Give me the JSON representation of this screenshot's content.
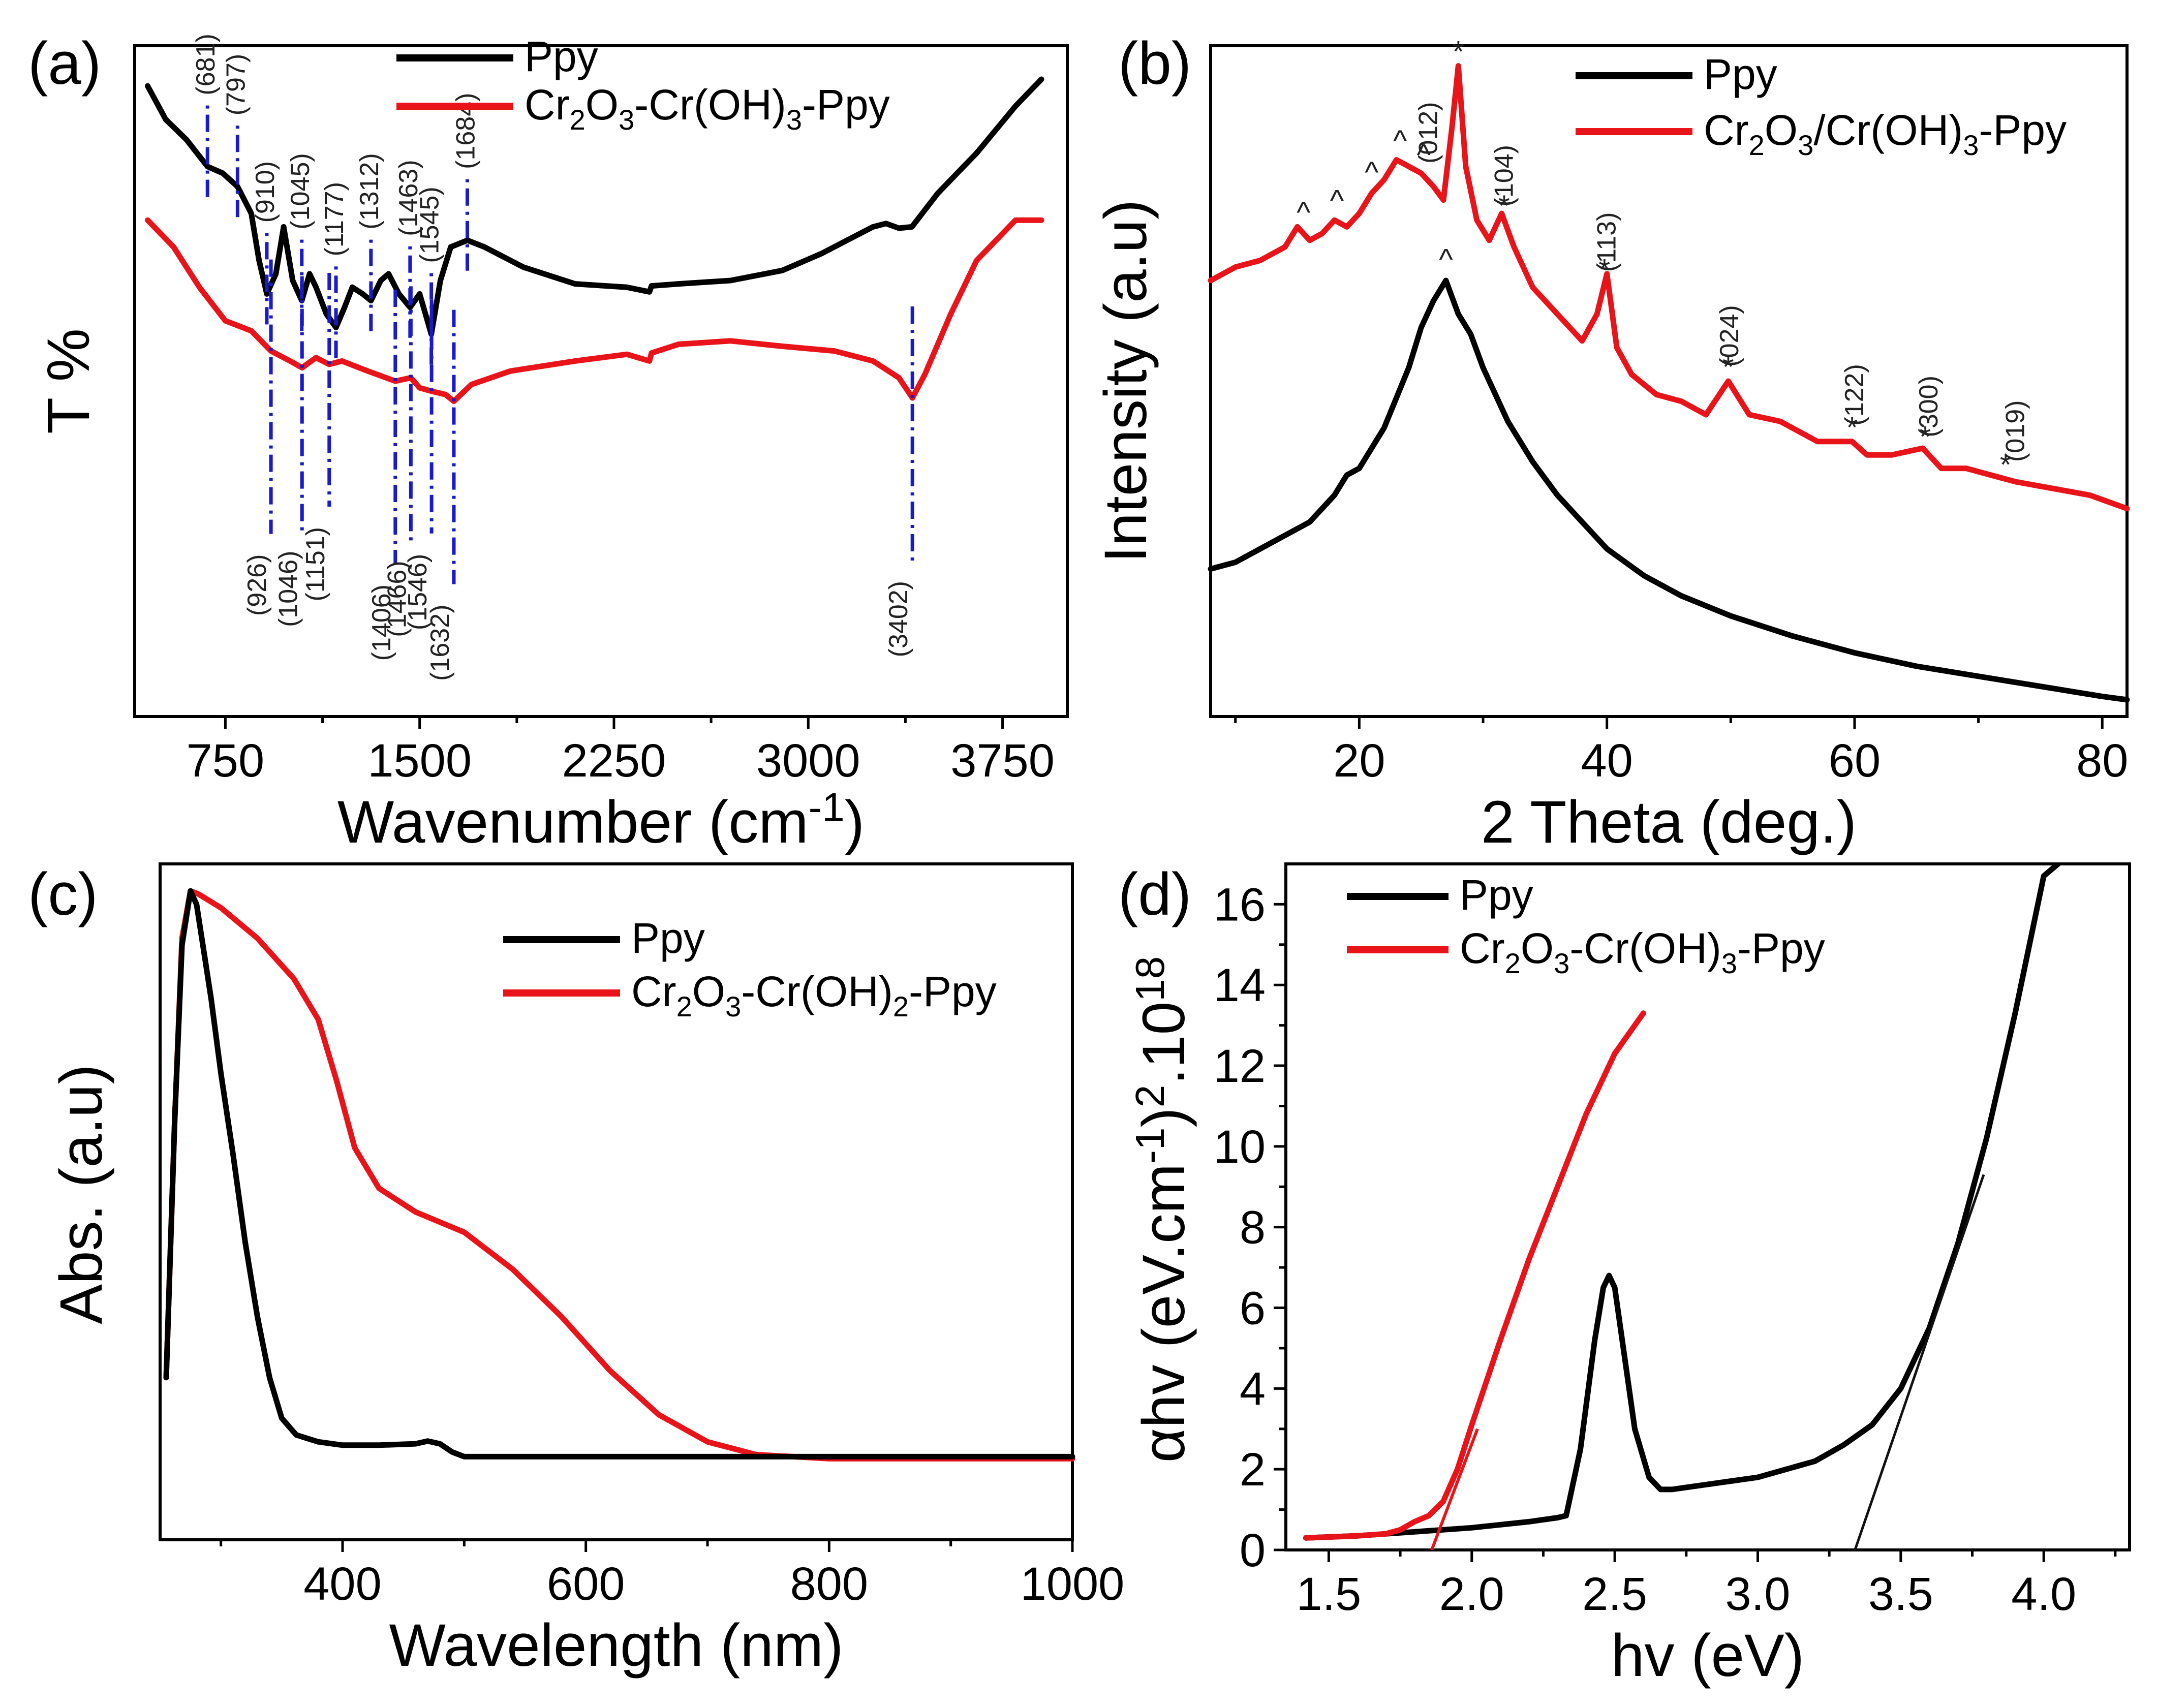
{
  "chart_data": [
    {
      "id": "a",
      "panel_label": "(a)",
      "type": "line",
      "title": "",
      "xlabel": "Wavenumber (cm-1)",
      "xlabel_main": "Wavenumber (cm",
      "xlabel_sup": "-1",
      "xlabel_end": ")",
      "ylabel": "T %",
      "xlim": [
        400,
        4000
      ],
      "ylim": [
        0,
        100
      ],
      "xticks": [
        750,
        1500,
        2250,
        3000,
        3750
      ],
      "xtick_labels": [
        "750",
        "1500",
        "2250",
        "3000",
        "3750"
      ],
      "legend": [
        "Ppy",
        "Cr2O3-Cr(OH)3-Ppy"
      ],
      "legend_parts": [
        [
          {
            "t": "Ppy"
          }
        ],
        [
          {
            "t": "Cr"
          },
          {
            "t": "2",
            "s": 1
          },
          {
            "t": "O"
          },
          {
            "t": "3",
            "s": 1
          },
          {
            "t": "-Cr(OH)"
          },
          {
            "t": "3",
            "s": 1
          },
          {
            "t": "-Ppy"
          }
        ]
      ],
      "colors": {
        "Ppy": "#000000",
        "composite": "#e8141a",
        "marker": "#1a1acc"
      },
      "series": [
        {
          "name": "Ppy",
          "x": [
            450,
            520,
            600,
            681,
            740,
            797,
            850,
            880,
            910,
            945,
            975,
            1010,
            1045,
            1075,
            1100,
            1140,
            1177,
            1210,
            1240,
            1280,
            1312,
            1350,
            1380,
            1420,
            1463,
            1500,
            1545,
            1580,
            1620,
            1684,
            1750,
            1900,
            2100,
            2300,
            2387,
            2395,
            2500,
            2700,
            2900,
            3050,
            3250,
            3300,
            3350,
            3400,
            3500,
            3650,
            3800,
            3900
          ],
          "y": [
            94,
            89,
            86,
            82,
            81,
            79,
            75,
            68,
            63,
            66,
            73,
            65,
            62,
            66,
            64,
            60,
            58,
            61,
            64,
            63,
            62,
            65,
            66,
            63,
            61,
            63,
            57,
            65,
            70,
            71,
            70,
            67,
            64.5,
            64,
            63.3,
            64.2,
            64.5,
            65,
            66.5,
            69,
            73,
            73.5,
            72.8,
            73,
            78,
            84,
            91,
            95
          ]
        },
        {
          "name": "Cr2O3-Cr(OH)3-Ppy",
          "x": [
            450,
            550,
            650,
            750,
            850,
            926,
            1000,
            1046,
            1100,
            1151,
            1200,
            1300,
            1406,
            1466,
            1500,
            1546,
            1600,
            1632,
            1700,
            1850,
            2100,
            2300,
            2387,
            2395,
            2500,
            2700,
            2900,
            3100,
            3250,
            3350,
            3402,
            3450,
            3550,
            3650,
            3800,
            3900
          ],
          "y": [
            74,
            70,
            64,
            59,
            57.5,
            54.5,
            53,
            52,
            53.5,
            52.5,
            53,
            51.5,
            50,
            50.5,
            49,
            48.5,
            48,
            47,
            49.5,
            51.5,
            53,
            54,
            53,
            54.2,
            55.5,
            56,
            55.2,
            54.5,
            53,
            50.5,
            47.5,
            51,
            60,
            68,
            74,
            74
          ]
        }
      ],
      "ppy_markers": [
        681,
        797,
        910,
        1045,
        1177,
        1312,
        1463,
        1545,
        1684
      ],
      "ppy_marker_labels": [
        "(681)",
        "(797)",
        "(910)",
        "(1045)",
        "(1177)",
        "(1312)",
        "(1463)",
        "(1545)",
        "(1684)"
      ],
      "composite_markers": [
        926,
        1046,
        1151,
        1406,
        1466,
        1546,
        1632,
        3402
      ],
      "composite_marker_labels": [
        "(926)",
        "(1046)",
        "(1151)",
        "(1406)",
        "(1466)",
        "(1546)",
        "(1632)",
        "(3402)"
      ]
    },
    {
      "id": "b",
      "panel_label": "(b)",
      "type": "line",
      "title": "",
      "xlabel": "2 Theta (deg.)",
      "ylabel": "Intensity (a.u)",
      "xlim": [
        8,
        82
      ],
      "ylim": [
        0,
        100
      ],
      "xticks": [
        20,
        40,
        60,
        80
      ],
      "xtick_labels": [
        "20",
        "40",
        "60",
        "80"
      ],
      "legend": [
        "Ppy",
        "Cr2O3/Cr(OH)3-Ppy"
      ],
      "legend_parts": [
        [
          {
            "t": "Ppy"
          }
        ],
        [
          {
            "t": "Cr"
          },
          {
            "t": "2",
            "s": 1
          },
          {
            "t": "O"
          },
          {
            "t": "3",
            "s": 1
          },
          {
            "t": "/Cr(OH)"
          },
          {
            "t": "3",
            "s": 1
          },
          {
            "t": "-Ppy"
          }
        ]
      ],
      "series": [
        {
          "name": "Ppy",
          "x": [
            8,
            10,
            12,
            14,
            16,
            18,
            19,
            20,
            22,
            24,
            25,
            26,
            27,
            28,
            29,
            30,
            32,
            34,
            36,
            38,
            40,
            43,
            46,
            50,
            55,
            60,
            65,
            70,
            75,
            80,
            82
          ],
          "y": [
            22,
            23,
            25,
            27,
            29,
            33,
            36,
            37,
            43,
            52,
            58,
            62,
            65,
            60,
            57,
            52,
            44,
            38,
            33,
            29,
            25,
            21,
            18,
            15,
            12,
            9.5,
            7.5,
            6,
            4.5,
            3,
            2.5
          ]
        },
        {
          "name": "Cr2O3/Cr(OH)3-Ppy",
          "x": [
            8,
            10,
            12,
            14,
            15,
            16,
            17,
            18,
            19,
            20,
            21,
            22,
            23,
            24,
            25,
            26,
            26.8,
            27.5,
            28,
            28.6,
            29.5,
            30.5,
            31.5,
            32.5,
            34,
            36,
            38,
            39.2,
            40,
            40.8,
            42,
            44,
            46,
            48,
            49.8,
            51.5,
            54,
            57,
            59.8,
            61,
            63,
            65.5,
            67,
            69,
            71,
            73,
            76,
            79,
            82
          ],
          "y": [
            65,
            67,
            68,
            70,
            73,
            71,
            72,
            74,
            73,
            75,
            78,
            80,
            83,
            82,
            81,
            79,
            77,
            88,
            97,
            82,
            74,
            71,
            75,
            70,
            64,
            60,
            56,
            60,
            66,
            55,
            51,
            48,
            47,
            45,
            50,
            45,
            44,
            41,
            41,
            39,
            39,
            40,
            37,
            37,
            36,
            35,
            34,
            33,
            31
          ]
        }
      ],
      "hat_markers": [
        15.5,
        18.2,
        21,
        23.3,
        25.2,
        27
      ],
      "star_markers": [
        28,
        31.7,
        39.8,
        49.8,
        59.8,
        65.7,
        72.2
      ],
      "star_symbol": "*",
      "hat_symbol": "^",
      "hkl_positions": [
        25.8,
        31.9,
        40.2,
        50.1,
        60.2,
        66.2,
        73.2
      ],
      "hkl_labels": [
        "(012)",
        "(104)",
        "(113)",
        "(024)",
        "(122)",
        "(300)",
        "(019)"
      ]
    },
    {
      "id": "c",
      "panel_label": "(c)",
      "type": "line",
      "title": "",
      "xlabel": "Wavelength (nm)",
      "ylabel": "Abs. (a.u)",
      "xlim": [
        250,
        1000
      ],
      "ylim": [
        0,
        100
      ],
      "xticks": [
        400,
        600,
        800,
        1000
      ],
      "xtick_labels": [
        "400",
        "600",
        "800",
        "1000"
      ],
      "legend": [
        "Ppy",
        "Cr2O3-Cr(OH)2-Ppy"
      ],
      "legend_parts": [
        [
          {
            "t": "Ppy"
          }
        ],
        [
          {
            "t": "Cr"
          },
          {
            "t": "2",
            "s": 1
          },
          {
            "t": "O"
          },
          {
            "t": "3",
            "s": 1
          },
          {
            "t": "-Cr(OH)"
          },
          {
            "t": "2",
            "s": 1
          },
          {
            "t": "-Ppy"
          }
        ]
      ],
      "series": [
        {
          "name": "Ppy",
          "x": [
            255,
            262,
            268,
            275,
            280,
            286,
            292,
            300,
            310,
            320,
            330,
            340,
            350,
            362,
            380,
            400,
            430,
            460,
            470,
            480,
            490,
            500,
            550,
            600,
            700,
            800,
            900,
            1000
          ],
          "y": [
            24,
            62,
            88,
            96,
            94,
            87,
            80,
            69,
            57,
            44,
            33,
            24,
            18,
            15.5,
            14.5,
            14,
            14,
            14.2,
            14.6,
            14.2,
            13,
            12.3,
            12.3,
            12.3,
            12.3,
            12.3,
            12.3,
            12.3
          ]
        },
        {
          "name": "Cr2O3-Cr(OH)2-Ppy",
          "x": [
            255,
            262,
            268,
            275,
            282,
            300,
            330,
            360,
            380,
            395,
            410,
            430,
            460,
            500,
            540,
            580,
            620,
            660,
            700,
            740,
            800,
            900,
            1000
          ],
          "y": [
            24,
            62,
            89,
            96,
            95.5,
            93.5,
            89,
            83,
            77,
            68,
            58,
            52,
            48.5,
            45.5,
            40,
            33,
            25,
            18.5,
            14.5,
            12.6,
            12,
            12,
            12
          ]
        }
      ]
    },
    {
      "id": "d",
      "panel_label": "(d)",
      "type": "line",
      "title": "",
      "xlabel": "hv (eV)",
      "ylabel": "αhv (eV.cm-1)2.1018",
      "ylabel_parts": [
        "αhv (eV.cm",
        "-1",
        ")",
        "2",
        ".10",
        "18"
      ],
      "xlim": [
        1.35,
        4.3
      ],
      "ylim": [
        0,
        17
      ],
      "xticks": [
        1.5,
        2.0,
        2.5,
        3.0,
        3.5,
        4.0
      ],
      "xtick_labels": [
        "1.5",
        "2.0",
        "2.5",
        "3.0",
        "3.5",
        "4.0"
      ],
      "yticks": [
        0,
        2,
        4,
        6,
        8,
        10,
        12,
        14,
        16
      ],
      "ytick_labels": [
        "0",
        "2",
        "4",
        "6",
        "8",
        "10",
        "12",
        "14",
        "16"
      ],
      "legend": [
        "Ppy",
        "Cr2O3-Cr(OH)3-Ppy"
      ],
      "legend_parts": [
        [
          {
            "t": "Ppy"
          }
        ],
        [
          {
            "t": "Cr"
          },
          {
            "t": "2",
            "s": 1
          },
          {
            "t": "O"
          },
          {
            "t": "3",
            "s": 1
          },
          {
            "t": "-Cr(OH)"
          },
          {
            "t": "3",
            "s": 1
          },
          {
            "t": "-Ppy"
          }
        ]
      ],
      "series": [
        {
          "name": "Ppy",
          "x": [
            1.42,
            1.6,
            1.8,
            2.0,
            2.2,
            2.3,
            2.33,
            2.38,
            2.43,
            2.46,
            2.48,
            2.5,
            2.53,
            2.57,
            2.62,
            2.66,
            2.7,
            2.8,
            2.9,
            3.0,
            3.1,
            3.2,
            3.3,
            3.4,
            3.5,
            3.6,
            3.7,
            3.8,
            3.9,
            4.0,
            4.05
          ],
          "y": [
            0.3,
            0.35,
            0.45,
            0.55,
            0.7,
            0.8,
            0.85,
            2.5,
            5.2,
            6.5,
            6.8,
            6.5,
            5.0,
            3.0,
            1.8,
            1.5,
            1.5,
            1.6,
            1.7,
            1.8,
            2.0,
            2.2,
            2.6,
            3.1,
            4.0,
            5.5,
            7.6,
            10.2,
            13.3,
            16.7,
            17
          ]
        },
        {
          "name": "Cr2O3-Cr(OH)3-Ppy",
          "x": [
            1.42,
            1.5,
            1.6,
            1.7,
            1.75,
            1.8,
            1.85,
            1.9,
            1.95,
            2.0,
            2.1,
            2.2,
            2.3,
            2.4,
            2.5,
            2.6
          ],
          "y": [
            0.3,
            0.32,
            0.35,
            0.4,
            0.5,
            0.7,
            0.85,
            1.2,
            2.0,
            3.1,
            5.2,
            7.2,
            9.0,
            10.8,
            12.3,
            13.3
          ]
        }
      ],
      "fits": [
        {
          "series": "Cr2O3-Cr(OH)3-Ppy",
          "x": [
            1.86,
            2.02
          ],
          "y": [
            0,
            3.0
          ]
        },
        {
          "series": "Ppy",
          "x": [
            3.34,
            3.79
          ],
          "y": [
            0,
            9.3
          ]
        }
      ]
    }
  ]
}
